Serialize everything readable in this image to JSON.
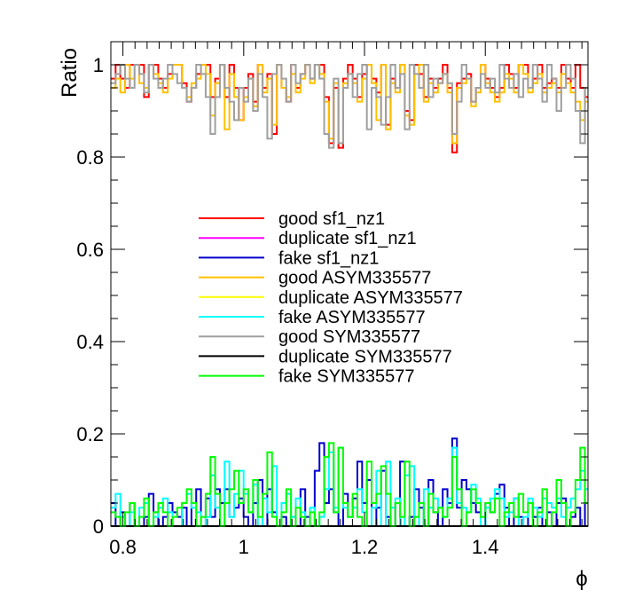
{
  "chart_data": {
    "type": "line",
    "style": "step-histogram",
    "xlabel": "ϕ",
    "ylabel": "Ratio",
    "xlim": [
      0.78,
      1.57
    ],
    "ylim": [
      0,
      1.05
    ],
    "x_ticks": [
      0.8,
      1.0,
      1.2,
      1.4
    ],
    "x_tick_labels": [
      "0.8",
      "1",
      "1.2",
      "1.4"
    ],
    "y_ticks": [
      0,
      0.2,
      0.4,
      0.6,
      0.8,
      1.0
    ],
    "y_tick_labels": [
      "0",
      "0.2",
      "0.4",
      "0.6",
      "0.8",
      "1"
    ],
    "bin_start": 0.78,
    "bin_width": 0.00785,
    "legend_position": "center",
    "series": [
      {
        "name": "good sf1_nz1",
        "color": "#ff0000",
        "values": [
          0.97,
          1.0,
          0.97,
          0.95,
          1.0,
          1.0,
          1.0,
          0.93,
          1.0,
          1.0,
          0.97,
          0.95,
          0.98,
          1.0,
          1.0,
          0.96,
          0.92,
          0.95,
          0.98,
          1.0,
          1.0,
          0.93,
          0.97,
          1.0,
          0.93,
          1.0,
          0.95,
          0.88,
          0.95,
          0.98,
          0.92,
          1.0,
          0.95,
          0.98,
          0.85,
          1.0,
          0.95,
          0.92,
          1.0,
          0.95,
          0.98,
          1.0,
          0.97,
          1.0,
          1.0,
          0.93,
          0.83,
          0.95,
          0.82,
          0.97,
          1.0,
          0.97,
          0.93,
          0.98,
          1.0,
          0.97,
          0.94,
          1.0,
          0.87,
          0.97,
          0.95,
          1.0,
          0.9,
          0.88,
          1.0,
          0.98,
          0.93,
          0.97,
          0.95,
          0.97,
          1.0,
          0.95,
          0.81,
          0.96,
          0.97,
          0.98,
          0.92,
          0.95,
          1.0,
          0.97,
          0.95,
          0.93,
          0.95,
          1.0,
          0.98,
          0.95,
          1.0,
          1.0,
          0.95,
          0.97,
          1.0,
          0.95,
          0.96,
          0.97,
          0.95,
          1.0,
          0.97,
          0.95,
          1.0,
          0.95,
          0.93,
          0.96,
          0.98,
          0.87,
          1.0,
          0.95,
          0.97,
          1.0
        ]
      },
      {
        "name": "duplicate sf1_nz1",
        "color": "#ff00ff",
        "values": [
          0,
          0,
          0,
          0,
          0,
          0,
          0,
          0,
          0,
          0,
          0,
          0,
          0,
          0,
          0,
          0,
          0,
          0,
          0,
          0,
          0,
          0,
          0,
          0,
          0,
          0,
          0,
          0,
          0,
          0,
          0,
          0,
          0,
          0,
          0,
          0,
          0,
          0,
          0,
          0,
          0,
          0,
          0,
          0,
          0,
          0,
          0,
          0,
          0,
          0,
          0,
          0,
          0,
          0,
          0,
          0,
          0,
          0,
          0,
          0,
          0,
          0,
          0,
          0,
          0,
          0,
          0,
          0,
          0,
          0,
          0,
          0,
          0,
          0,
          0,
          0,
          0,
          0,
          0,
          0,
          0,
          0,
          0,
          0,
          0,
          0,
          0,
          0,
          0,
          0,
          0,
          0,
          0,
          0,
          0,
          0,
          0,
          0,
          0,
          0,
          0,
          0,
          0,
          0,
          0,
          0,
          0,
          0
        ]
      },
      {
        "name": "fake sf1_nz1",
        "color": "#0000cc",
        "values": [
          0.05,
          0.0,
          0.03,
          0.0,
          0.05,
          0.0,
          0.0,
          0.02,
          0.07,
          0.03,
          0.0,
          0.02,
          0.05,
          0.03,
          0.02,
          0.04,
          0.0,
          0.05,
          0.08,
          0.0,
          0.06,
          0.02,
          0.08,
          0.05,
          0.08,
          0.02,
          0.04,
          0.06,
          0.02,
          0.0,
          0.05,
          0.1,
          0.0,
          0.08,
          0.03,
          0.0,
          0.02,
          0.0,
          0.02,
          0.0,
          0.08,
          0.02,
          0.0,
          0.12,
          0.18,
          0.05,
          0.08,
          0.03,
          0.0,
          0.07,
          0.02,
          0.06,
          0.14,
          0.05,
          0.1,
          0.0,
          0.04,
          0.12,
          0.02,
          0.0,
          0.05,
          0.14,
          0.0,
          0.02,
          0.08,
          0.04,
          0.0,
          0.1,
          0.03,
          0.0,
          0.08,
          0.05,
          0.19,
          0.04,
          0.1,
          0.08,
          0.05,
          0.03,
          0.0,
          0.05,
          0.03,
          0.07,
          0.09,
          0.04,
          0.0,
          0.06,
          0.02,
          0.0,
          0.05,
          0.02,
          0.04,
          0.0,
          0.03,
          0.0,
          0.05,
          0.06,
          0.0,
          0.02,
          0.04,
          0.0,
          0.08,
          0.0,
          0.03,
          0.0,
          0.05,
          0.02,
          0.04,
          0.05
        ]
      },
      {
        "name": "good ASYM335577",
        "color": "#ffc000",
        "values": [
          0.95,
          0.97,
          0.94,
          1.0,
          0.97,
          1.0,
          0.96,
          0.95,
          1.0,
          0.98,
          0.96,
          0.94,
          0.97,
          1.0,
          1.0,
          0.95,
          0.93,
          0.96,
          0.97,
          1.0,
          0.98,
          0.89,
          0.96,
          1.0,
          0.86,
          0.98,
          0.93,
          0.88,
          0.93,
          0.97,
          0.91,
          1.0,
          0.94,
          0.97,
          0.87,
          1.0,
          0.95,
          0.93,
          0.98,
          0.94,
          0.97,
          1.0,
          0.96,
          1.0,
          0.98,
          0.92,
          0.84,
          0.96,
          0.83,
          0.96,
          0.98,
          0.96,
          0.92,
          0.97,
          1.0,
          0.96,
          0.88,
          1.0,
          0.86,
          0.96,
          0.94,
          1.0,
          0.89,
          0.87,
          0.98,
          1.0,
          0.92,
          0.96,
          0.94,
          0.96,
          0.98,
          0.94,
          0.83,
          0.95,
          0.96,
          0.97,
          0.91,
          0.94,
          1.0,
          0.96,
          0.94,
          0.92,
          0.94,
          0.98,
          0.97,
          0.94,
          1.0,
          0.98,
          0.94,
          0.96,
          0.98,
          0.94,
          0.95,
          0.96,
          0.94,
          0.98,
          0.96,
          0.94,
          0.92,
          0.88,
          0.92,
          0.95,
          0.97,
          0.86,
          1.0,
          0.94,
          0.96,
          0.98
        ]
      },
      {
        "name": "duplicate ASYM335577",
        "color": "#ffff00",
        "values": [
          0,
          0,
          0,
          0,
          0,
          0,
          0,
          0,
          0,
          0,
          0,
          0,
          0,
          0,
          0,
          0,
          0,
          0,
          0,
          0,
          0,
          0,
          0,
          0,
          0,
          0,
          0,
          0,
          0,
          0,
          0,
          0,
          0,
          0,
          0,
          0,
          0,
          0,
          0,
          0,
          0,
          0,
          0,
          0,
          0,
          0,
          0,
          0,
          0,
          0,
          0,
          0,
          0,
          0,
          0,
          0,
          0,
          0,
          0,
          0,
          0,
          0,
          0,
          0,
          0,
          0,
          0,
          0,
          0,
          0,
          0,
          0,
          0,
          0,
          0,
          0,
          0,
          0,
          0,
          0,
          0,
          0,
          0,
          0,
          0,
          0,
          0,
          0,
          0,
          0,
          0,
          0,
          0,
          0,
          0,
          0,
          0,
          0,
          0,
          0,
          0,
          0,
          0,
          0,
          0,
          0,
          0,
          0
        ]
      },
      {
        "name": "fake ASYM335577",
        "color": "#00ffff",
        "values": [
          0.04,
          0.07,
          0.02,
          0.0,
          0.03,
          0.0,
          0.04,
          0.05,
          0.0,
          0.02,
          0.04,
          0.06,
          0.03,
          0.0,
          0.0,
          0.05,
          0.07,
          0.04,
          0.03,
          0.0,
          0.02,
          0.11,
          0.04,
          0.0,
          0.14,
          0.02,
          0.07,
          0.12,
          0.07,
          0.03,
          0.09,
          0.0,
          0.06,
          0.03,
          0.13,
          0.0,
          0.05,
          0.07,
          0.02,
          0.06,
          0.03,
          0.0,
          0.04,
          0.0,
          0.02,
          0.08,
          0.16,
          0.04,
          0.17,
          0.04,
          0.02,
          0.04,
          0.08,
          0.03,
          0.0,
          0.04,
          0.12,
          0.0,
          0.14,
          0.04,
          0.06,
          0.0,
          0.11,
          0.13,
          0.02,
          0.0,
          0.08,
          0.04,
          0.06,
          0.04,
          0.02,
          0.06,
          0.17,
          0.05,
          0.04,
          0.03,
          0.09,
          0.06,
          0.0,
          0.04,
          0.06,
          0.08,
          0.06,
          0.02,
          0.03,
          0.06,
          0.0,
          0.02,
          0.06,
          0.04,
          0.02,
          0.06,
          0.05,
          0.04,
          0.06,
          0.02,
          0.04,
          0.06,
          0.08,
          0.12,
          0.08,
          0.05,
          0.03,
          0.14,
          0.0,
          0.06,
          0.04,
          0.02
        ]
      },
      {
        "name": "good SYM335577",
        "color": "#a0a0a0",
        "values": [
          0.96,
          0.98,
          1.0,
          0.97,
          0.95,
          1.0,
          0.98,
          0.94,
          1.0,
          0.97,
          0.95,
          0.97,
          1.0,
          0.98,
          0.96,
          0.95,
          0.92,
          0.95,
          1.0,
          0.98,
          0.93,
          0.85,
          0.93,
          1.0,
          0.95,
          0.92,
          0.88,
          0.95,
          0.92,
          0.97,
          0.9,
          0.98,
          0.93,
          0.84,
          0.98,
          1.0,
          0.97,
          0.92,
          1.0,
          0.96,
          0.98,
          1.0,
          0.97,
          1.0,
          0.97,
          0.85,
          0.82,
          0.97,
          0.83,
          0.95,
          0.98,
          0.93,
          0.98,
          1.0,
          0.86,
          0.95,
          0.93,
          0.87,
          0.93,
          1.0,
          0.95,
          0.98,
          0.86,
          1.0,
          0.98,
          0.95,
          1.0,
          0.93,
          0.97,
          0.96,
          0.98,
          0.96,
          0.85,
          0.92,
          1.0,
          0.97,
          0.92,
          0.95,
          0.98,
          0.95,
          0.97,
          0.94,
          1.0,
          0.97,
          0.95,
          0.98,
          0.93,
          0.97,
          0.95,
          1.0,
          0.97,
          0.92,
          1.0,
          0.97,
          0.9,
          0.95,
          1.0,
          0.97,
          0.9,
          0.83,
          0.95,
          0.98,
          0.97,
          0.84,
          0.98,
          0.95,
          0.96,
          0.95
        ]
      },
      {
        "name": "duplicate SYM335577",
        "color": "#000000",
        "values": [
          0,
          0,
          0,
          0,
          0,
          0,
          0,
          0,
          0,
          0,
          0,
          0,
          0,
          0,
          0,
          0,
          0,
          0,
          0,
          0,
          0,
          0,
          0,
          0,
          0,
          0,
          0,
          0,
          0,
          0,
          0,
          0,
          0,
          0,
          0,
          0,
          0,
          0,
          0,
          0,
          0,
          0,
          0,
          0,
          0,
          0,
          0,
          0,
          0,
          0,
          0,
          0,
          0,
          0,
          0,
          0,
          0,
          0,
          0,
          0,
          0,
          0,
          0,
          0,
          0,
          0,
          0,
          0,
          0,
          0,
          0,
          0,
          0,
          0,
          0,
          0,
          0,
          0,
          0,
          0,
          0,
          0,
          0,
          0,
          0,
          0,
          0,
          0,
          0,
          0,
          0,
          0,
          0,
          0,
          0,
          0,
          0,
          0,
          0,
          0,
          0,
          0,
          0,
          0,
          0,
          0,
          0,
          0
        ]
      },
      {
        "name": "fake SYM335577",
        "color": "#00ff00",
        "values": [
          0.03,
          0.02,
          0.0,
          0.03,
          0.05,
          0.0,
          0.02,
          0.06,
          0.0,
          0.03,
          0.05,
          0.03,
          0.0,
          0.02,
          0.04,
          0.05,
          0.08,
          0.05,
          0.0,
          0.02,
          0.07,
          0.15,
          0.07,
          0.0,
          0.05,
          0.08,
          0.12,
          0.05,
          0.08,
          0.03,
          0.1,
          0.02,
          0.07,
          0.16,
          0.02,
          0.0,
          0.03,
          0.08,
          0.0,
          0.04,
          0.02,
          0.0,
          0.03,
          0.0,
          0.03,
          0.15,
          0.18,
          0.03,
          0.17,
          0.05,
          0.02,
          0.07,
          0.02,
          0.0,
          0.14,
          0.05,
          0.07,
          0.13,
          0.07,
          0.0,
          0.05,
          0.02,
          0.14,
          0.0,
          0.02,
          0.05,
          0.0,
          0.07,
          0.03,
          0.04,
          0.02,
          0.04,
          0.15,
          0.08,
          0.0,
          0.03,
          0.08,
          0.05,
          0.02,
          0.05,
          0.03,
          0.06,
          0.0,
          0.03,
          0.05,
          0.02,
          0.07,
          0.03,
          0.05,
          0.0,
          0.03,
          0.08,
          0.0,
          0.03,
          0.1,
          0.05,
          0.0,
          0.03,
          0.1,
          0.17,
          0.05,
          0.02,
          0.03,
          0.16,
          0.02,
          0.05,
          0.04,
          0.05
        ]
      }
    ]
  }
}
